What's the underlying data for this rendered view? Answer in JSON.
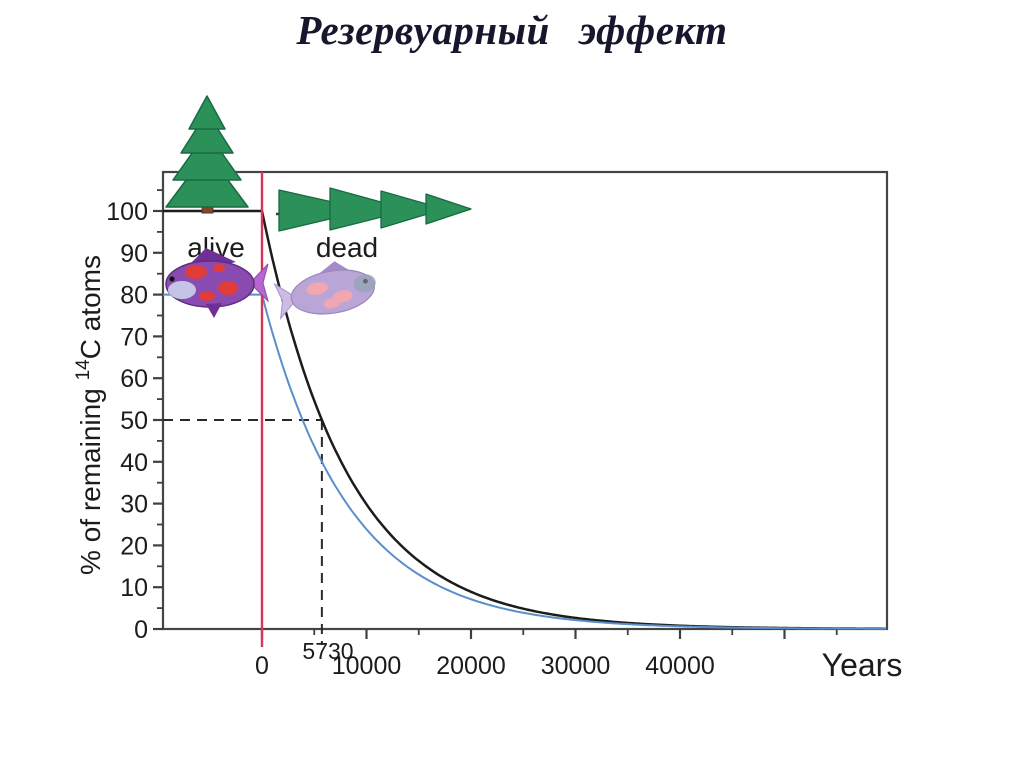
{
  "title": "Резервуарный эффект",
  "colors": {
    "axis": "#3f3f3f",
    "curve_atmospheric": "#1c1c1c",
    "curve_marine": "#5b8fc9",
    "death_line": "#d23757",
    "half_life_text": "#d23757",
    "tree_green": "#2c9158",
    "fish_purple": "#8a4bb0"
  },
  "chart_data": {
    "type": "line",
    "title": "Резервуарный эффект",
    "xlabel": "Years",
    "ylabel": "% of remaining 14C atoms",
    "ylabel_parts": {
      "prefix": "% of remaining ",
      "superscript": "14",
      "suffix": "C atoms"
    },
    "xlim": [
      -9500,
      59800
    ],
    "ylim": [
      0,
      109
    ],
    "grid": false,
    "legend": false,
    "x_major_ticks": [
      0,
      10000,
      20000,
      30000,
      40000,
      50000
    ],
    "x_major_tick_labels": [
      "0",
      "10000",
      "20000",
      "30000",
      "40000",
      ""
    ],
    "x_minor_tick_step": 5000,
    "y_major_ticks": [
      0,
      10,
      20,
      30,
      40,
      50,
      60,
      70,
      80,
      90,
      100
    ],
    "y_minor_tick_step": 5,
    "half_life_years": 5730,
    "series": [
      {
        "name": "terrestrial-c14-decay",
        "initial_percent": 100,
        "color": "#1c1c1c",
        "x": [
          0,
          2865,
          5730,
          8595,
          11460,
          14325,
          17190,
          22920,
          28650,
          34380,
          40110,
          45840,
          51570,
          57300
        ],
        "values": [
          100,
          70.7,
          50,
          35.4,
          25,
          17.7,
          12.5,
          6.3,
          3.1,
          1.6,
          0.8,
          0.4,
          0.2,
          0.1
        ]
      },
      {
        "name": "marine-c14-decay-reservoir-effect",
        "initial_percent": 80,
        "color": "#5b8fc9",
        "x": [
          0,
          2865,
          5730,
          8595,
          11460,
          14325,
          17190,
          22920,
          28650,
          34380,
          40110,
          45840,
          51570,
          57300
        ],
        "values": [
          80,
          56.6,
          40,
          28.3,
          20,
          14.1,
          10,
          5,
          2.5,
          1.25,
          0.63,
          0.31,
          0.16,
          0.08
        ]
      }
    ],
    "annotations": {
      "alive_label": "alive",
      "dead_label": "dead",
      "half_life_label": "5730",
      "death_line_x": 0,
      "dashed_guide": {
        "y_percent": 50,
        "x_years": 5730
      }
    }
  },
  "icons": {
    "pine-tree-alive-icon": "standing green pine tree above axis start",
    "pine-tree-dead-icon": "fallen pine tree lying horizontally",
    "fish-alive-icon": "colorful purple fish with red patches",
    "fish-dead-icon": "pale faded dead fish, tilted"
  }
}
